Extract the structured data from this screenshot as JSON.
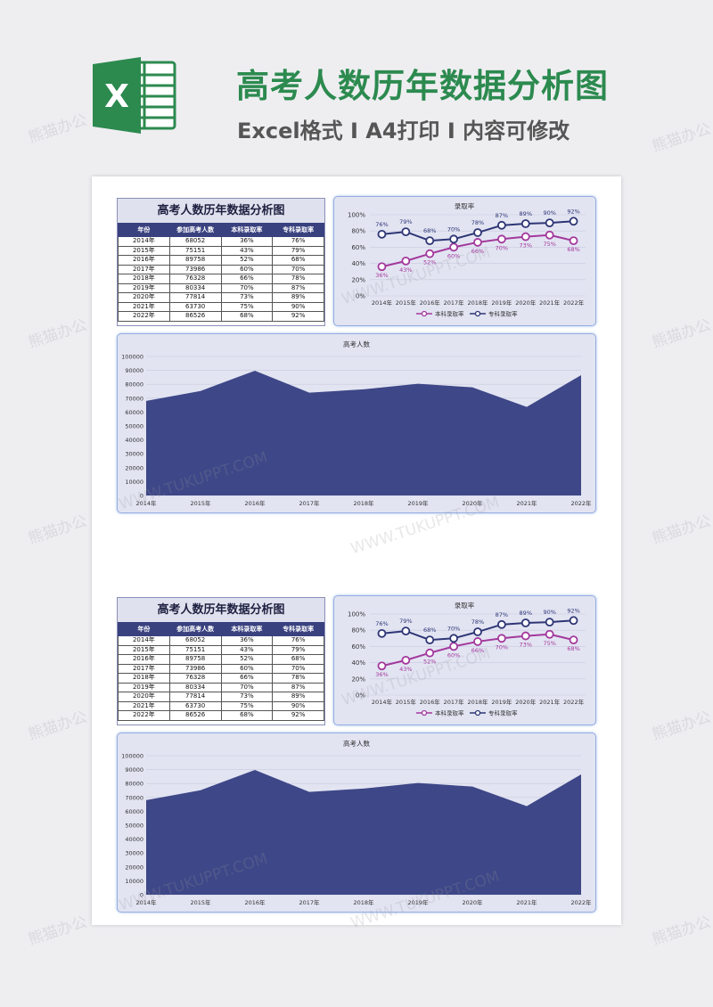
{
  "header": {
    "title": "高考人数历年数据分析图",
    "subtitle": "Excel格式 I A4打印 I 内容可修改",
    "logo_letter": "X"
  },
  "table": {
    "title": "高考人数历年数据分析图",
    "columns": [
      "年份",
      "参加高考人数",
      "本科录取率",
      "专科录取率"
    ],
    "rows": [
      [
        "2014年",
        "68052",
        "36%",
        "76%"
      ],
      [
        "2015年",
        "75151",
        "43%",
        "79%"
      ],
      [
        "2016年",
        "89758",
        "52%",
        "68%"
      ],
      [
        "2017年",
        "73986",
        "60%",
        "70%"
      ],
      [
        "2018年",
        "76328",
        "66%",
        "78%"
      ],
      [
        "2019年",
        "80334",
        "70%",
        "87%"
      ],
      [
        "2020年",
        "77814",
        "73%",
        "89%"
      ],
      [
        "2021年",
        "63730",
        "75%",
        "90%"
      ],
      [
        "2022年",
        "86526",
        "68%",
        "92%"
      ]
    ]
  },
  "chart_data": [
    {
      "type": "line",
      "title": "录取率",
      "categories": [
        "2014年",
        "2015年",
        "2016年",
        "2017年",
        "2018年",
        "2019年",
        "2020年",
        "2021年",
        "2022年"
      ],
      "series": [
        {
          "name": "本科录取率",
          "values": [
            36,
            43,
            52,
            60,
            66,
            70,
            73,
            75,
            68
          ],
          "labels": [
            "36%",
            "43%",
            "52%",
            "60%",
            "66%",
            "70%",
            "73%",
            "75%",
            "68%"
          ],
          "color": "#a3399c"
        },
        {
          "name": "专科录取率",
          "values": [
            76,
            79,
            68,
            70,
            78,
            87,
            89,
            90,
            92
          ],
          "labels": [
            "76%",
            "79%",
            "68%",
            "70%",
            "78%",
            "87%",
            "89%",
            "90%",
            "92%"
          ],
          "color": "#2e3675"
        }
      ],
      "ylim": [
        0,
        100
      ],
      "yticks": [
        "0%",
        "20%",
        "40%",
        "60%",
        "80%",
        "100%"
      ],
      "legend": "bottom",
      "grid": true
    },
    {
      "type": "area",
      "title": "高考人数",
      "categories": [
        "2014年",
        "2015年",
        "2016年",
        "2017年",
        "2018年",
        "2019年",
        "2020年",
        "2021年",
        "2022年"
      ],
      "values": [
        68052,
        75151,
        89758,
        73986,
        76328,
        80334,
        77814,
        63730,
        86526
      ],
      "ylim": [
        0,
        100000
      ],
      "yticks": [
        "0",
        "10000",
        "20000",
        "30000",
        "40000",
        "50000",
        "60000",
        "70000",
        "80000",
        "90000",
        "100000"
      ],
      "color": "#3e4787",
      "legend": "none",
      "grid": true
    }
  ],
  "watermarks": [
    "熊猫办公",
    "WWW.TUKUPPT.COM"
  ]
}
